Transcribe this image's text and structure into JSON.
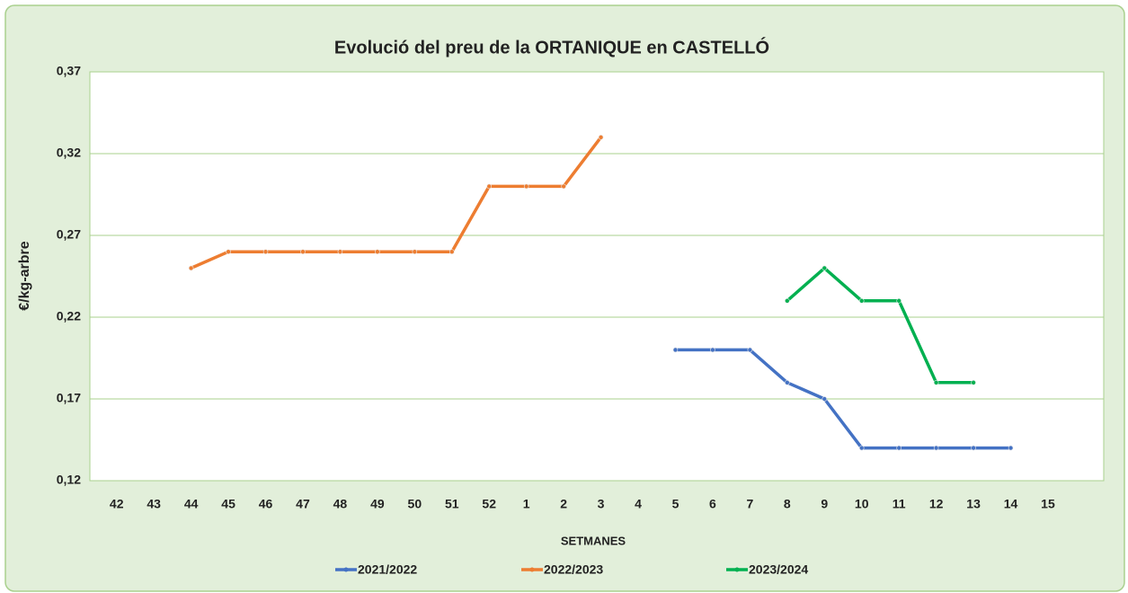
{
  "chart_data": {
    "type": "line",
    "title": "Evolució del preu de la ORTANIQUE en CASTELLÓ",
    "xlabel": "SETMANES",
    "ylabel": "€/kg-arbre",
    "categories": [
      "42",
      "43",
      "44",
      "45",
      "46",
      "47",
      "48",
      "49",
      "50",
      "51",
      "52",
      "1",
      "2",
      "3",
      "4",
      "5",
      "6",
      "7",
      "8",
      "9",
      "10",
      "11",
      "12",
      "13",
      "14",
      "15"
    ],
    "series": [
      {
        "name": "2021/2022",
        "color": "#4472c4",
        "values": [
          null,
          null,
          null,
          null,
          null,
          null,
          null,
          null,
          null,
          null,
          null,
          null,
          null,
          null,
          null,
          0.2,
          0.2,
          0.2,
          0.18,
          0.17,
          0.14,
          0.14,
          0.14,
          0.14,
          0.14,
          null
        ]
      },
      {
        "name": "2022/2023",
        "color": "#ed7d31",
        "values": [
          null,
          null,
          0.25,
          0.26,
          0.26,
          0.26,
          0.26,
          0.26,
          0.26,
          0.26,
          0.3,
          0.3,
          0.3,
          0.33,
          null,
          null,
          null,
          null,
          null,
          null,
          null,
          null,
          null,
          null,
          null,
          null
        ]
      },
      {
        "name": "2023/2024",
        "color": "#00b050",
        "values": [
          null,
          null,
          null,
          null,
          null,
          null,
          null,
          null,
          null,
          null,
          null,
          null,
          null,
          null,
          null,
          null,
          null,
          null,
          0.23,
          0.25,
          0.23,
          0.23,
          0.18,
          0.18,
          null,
          null
        ]
      }
    ],
    "ylim": [
      0.12,
      0.37
    ],
    "yticks": [
      {
        "value": 0.12,
        "label": "0,12"
      },
      {
        "value": 0.17,
        "label": "0,17"
      },
      {
        "value": 0.22,
        "label": "0,22"
      },
      {
        "value": 0.27,
        "label": "0,27"
      },
      {
        "value": 0.32,
        "label": "0,32"
      },
      {
        "value": 0.37,
        "label": "0,37"
      }
    ],
    "grid": true,
    "legend": "bottom"
  }
}
